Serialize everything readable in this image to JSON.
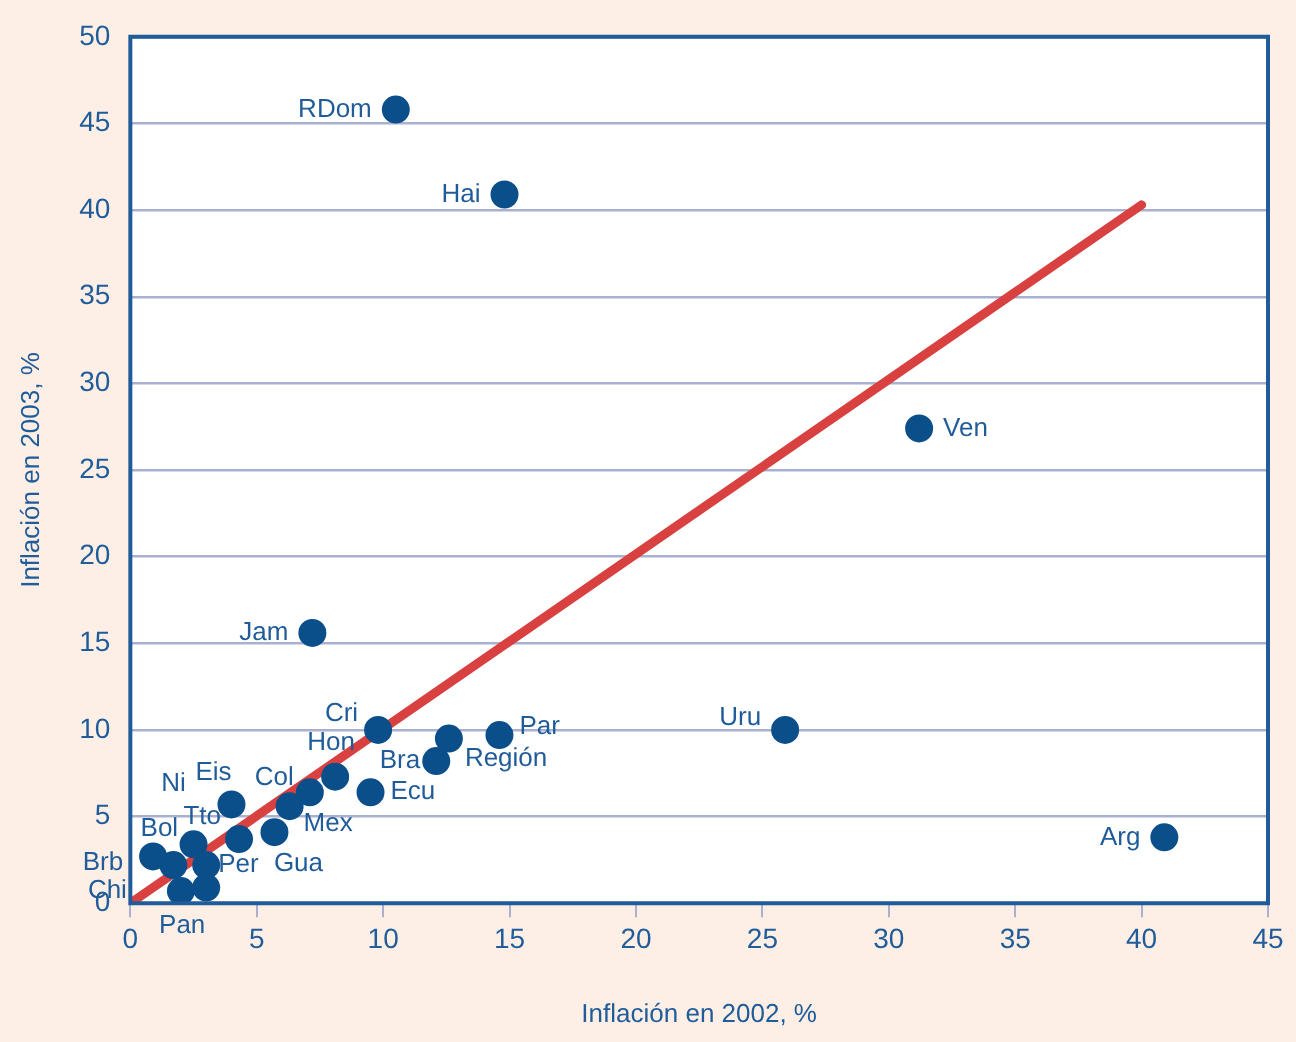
{
  "chart_data": {
    "type": "scatter",
    "xlabel": "Inflación en 2002, %",
    "ylabel": "Inflación en 2003, %",
    "xlim": [
      0,
      45
    ],
    "xticks": [
      0,
      5,
      10,
      15,
      20,
      25,
      30,
      35,
      40,
      45
    ],
    "ylim": [
      0,
      50
    ],
    "yticks": [
      0,
      5,
      10,
      15,
      20,
      25,
      30,
      35,
      40,
      45,
      50
    ],
    "grid": "y",
    "legend": false,
    "series": [
      {
        "color": "#0b4f8a",
        "marker": "circle",
        "x": [
          10.5,
          14.8,
          31.2,
          7.2,
          25.9,
          40.9,
          9.8,
          14.6,
          12.6,
          12.1,
          9.5,
          8.1,
          7.1,
          6.3,
          5.7,
          4.0,
          4.3,
          2.5,
          1.7,
          0.9,
          3.0,
          2.0,
          3.0
        ],
        "values": [
          45.8,
          40.9,
          27.4,
          15.6,
          10.0,
          3.8,
          10.0,
          9.7,
          9.5,
          8.2,
          6.4,
          7.3,
          6.4,
          5.6,
          4.1,
          5.7,
          3.7,
          3.4,
          2.2,
          2.7,
          2.2,
          0.7,
          0.9
        ]
      },
      {
        "type": "line",
        "marker": "none",
        "color": "#d94040",
        "x": [
          0,
          40
        ],
        "values": [
          0,
          40.3
        ]
      }
    ],
    "annotations": [
      {
        "text": "RDom",
        "x": 10.5,
        "y": 45.8
      },
      {
        "text": "Hai",
        "x": 14.8,
        "y": 40.9
      },
      {
        "text": "Ven",
        "x": 31.2,
        "y": 27.4
      },
      {
        "text": "Jam",
        "x": 7.2,
        "y": 15.6
      },
      {
        "text": "Uru",
        "x": 25.9,
        "y": 10.0
      },
      {
        "text": "Arg",
        "x": 40.9,
        "y": 3.8
      },
      {
        "text": "Cri",
        "x": 9.8,
        "y": 10.0
      },
      {
        "text": "Par",
        "x": 14.6,
        "y": 9.7
      },
      {
        "text": "Región",
        "x": 12.6,
        "y": 9.5
      },
      {
        "text": "Bra",
        "x": 12.1,
        "y": 8.2
      },
      {
        "text": "Ecu",
        "x": 9.5,
        "y": 6.4
      },
      {
        "text": "Hon",
        "x": 8.1,
        "y": 7.3
      },
      {
        "text": "Col",
        "x": 7.1,
        "y": 6.4
      },
      {
        "text": "Mex",
        "x": 6.3,
        "y": 5.6
      },
      {
        "text": "Gua",
        "x": 5.7,
        "y": 4.1
      },
      {
        "text": "Eis",
        "x": 4.0,
        "y": 5.7
      },
      {
        "text": "Tto",
        "x": 4.3,
        "y": 3.7
      },
      {
        "text": "Ni",
        "x": 2.5,
        "y": 3.4
      },
      {
        "text": "Bol",
        "x": 1.7,
        "y": 2.2
      },
      {
        "text": "Brb",
        "x": 0.9,
        "y": 2.7
      },
      {
        "text": "Per",
        "x": 3.0,
        "y": 2.2
      },
      {
        "text": "Chi",
        "x": 2.0,
        "y": 0.7
      },
      {
        "text": "Pan",
        "x": 3.0,
        "y": 0.9
      }
    ]
  }
}
